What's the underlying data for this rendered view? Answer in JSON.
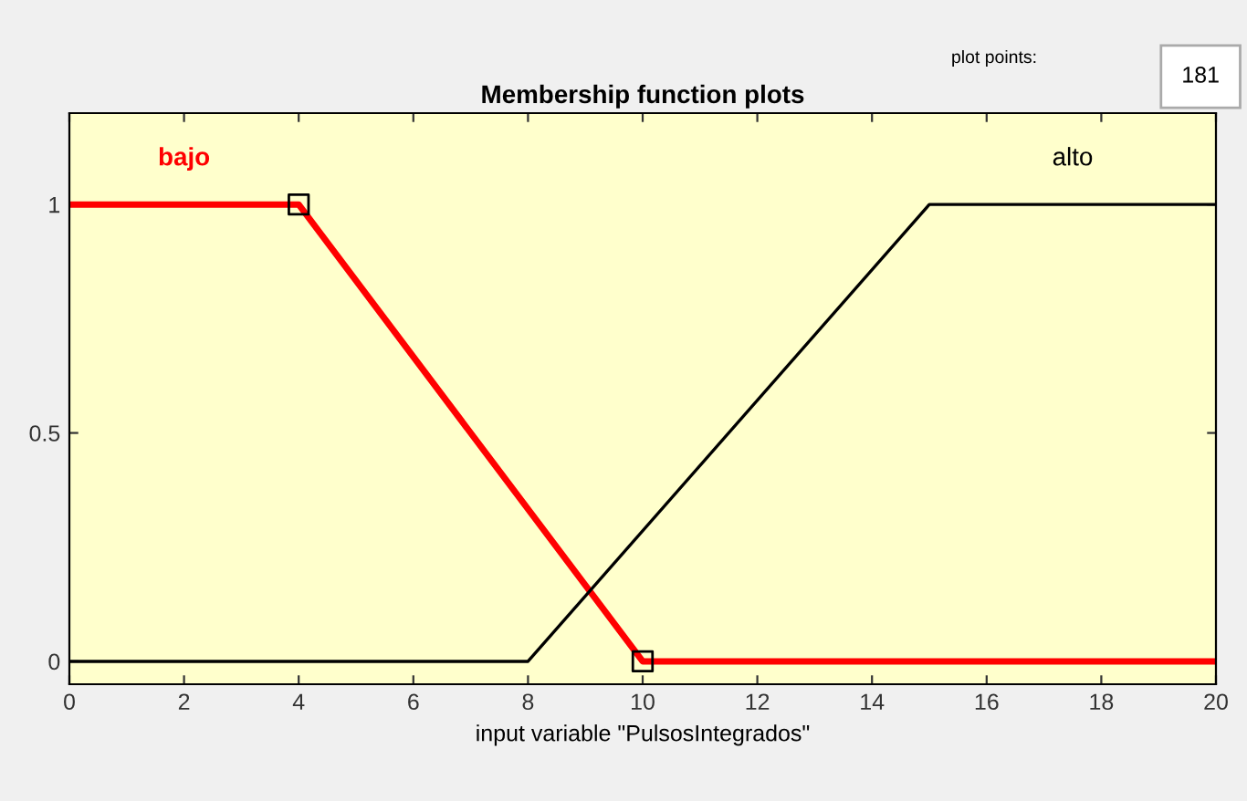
{
  "chart_data": {
    "type": "line",
    "title": "Membership function plots",
    "xlabel": "input variable \"PulsosIntegrados\"",
    "series": [
      {
        "name": "bajo",
        "color": "#ff0000",
        "x": [
          0,
          4,
          10,
          20
        ],
        "values": [
          1,
          1,
          0,
          0
        ]
      },
      {
        "name": "alto",
        "color": "#000000",
        "x": [
          0,
          8,
          15,
          20
        ],
        "values": [
          0,
          0,
          1,
          1
        ]
      },
      {
        "type": "scatter",
        "color": "#000000",
        "marker": "square",
        "x": [
          4,
          10
        ],
        "values": [
          1,
          0
        ]
      }
    ],
    "xlim": [
      0,
      20
    ],
    "xticks": [
      0,
      2,
      4,
      6,
      8,
      10,
      12,
      14,
      16,
      18,
      20
    ],
    "ylim": [
      -0.05,
      1.2
    ],
    "yticks": [
      0,
      0.5,
      1
    ],
    "grid": false,
    "legend": false,
    "annotations": [
      "plot points:",
      "181"
    ]
  }
}
